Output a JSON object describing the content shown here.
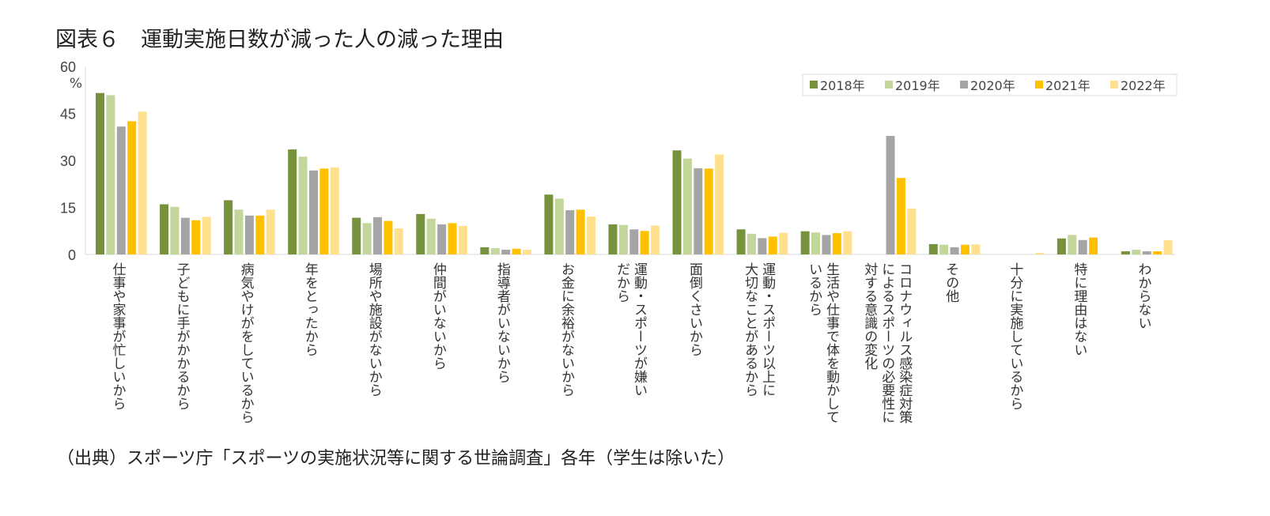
{
  "title": "図表６　運動実施日数が減った人の減った理由",
  "source": "（出典）スポーツ庁「スポーツの実施状況等に関する世論調査」各年（学生は除いた）",
  "chart_data": {
    "type": "bar",
    "ylabel": "%",
    "ylim": [
      0,
      60
    ],
    "yticks": [
      0,
      15,
      30,
      45,
      60
    ],
    "legend_position": "top-right",
    "grid": false,
    "categories": [
      "仕事や家事が忙しいから",
      "子どもに手がかかるから",
      "病気やけがをしているから",
      "年をとったから",
      "場所や施設がないから",
      "仲間がいないから",
      "指導者がいないから",
      "お金に余裕がないから",
      "運動・スポーツが嫌い\nだから",
      "面倒くさいから",
      "運動・スポーツ以上に\n大切なことがあるから",
      "生活や仕事で体を動かして\nいるから",
      "コロナウィルス感染症対策\nによるスポーツの必要性に\n対する意識の変化",
      "その他",
      "十分に実施しているから",
      "特に理由はない",
      "わからない"
    ],
    "series": [
      {
        "name": "2018年",
        "color": "#76923c",
        "values": [
          51.5,
          16.0,
          17.3,
          33.5,
          11.7,
          12.9,
          2.3,
          19.1,
          9.6,
          33.2,
          8.0,
          7.4,
          null,
          3.3,
          null,
          5.1,
          1.0
        ]
      },
      {
        "name": "2019年",
        "color": "#c3d69b",
        "values": [
          50.8,
          15.2,
          14.3,
          31.2,
          10.0,
          11.4,
          2.0,
          17.8,
          9.4,
          30.6,
          6.6,
          7.0,
          null,
          3.1,
          null,
          6.2,
          1.5
        ]
      },
      {
        "name": "2020年",
        "color": "#a5a5a5",
        "values": [
          40.8,
          11.7,
          12.4,
          26.8,
          11.9,
          9.6,
          1.5,
          14.1,
          8.0,
          27.5,
          5.2,
          6.2,
          37.8,
          2.3,
          null,
          4.6,
          1.0
        ]
      },
      {
        "name": "2021年",
        "color": "#ffc000",
        "values": [
          42.5,
          10.9,
          12.4,
          27.4,
          10.7,
          10.0,
          1.8,
          14.3,
          7.5,
          27.4,
          5.7,
          6.8,
          24.4,
          3.1,
          null,
          5.4,
          1.0
        ]
      },
      {
        "name": "2022年",
        "color": "#ffe08c",
        "values": [
          45.6,
          12.0,
          14.3,
          27.8,
          8.3,
          9.1,
          1.5,
          12.1,
          9.2,
          31.9,
          6.9,
          7.4,
          14.6,
          3.2,
          0.5,
          null,
          4.5
        ]
      }
    ]
  }
}
